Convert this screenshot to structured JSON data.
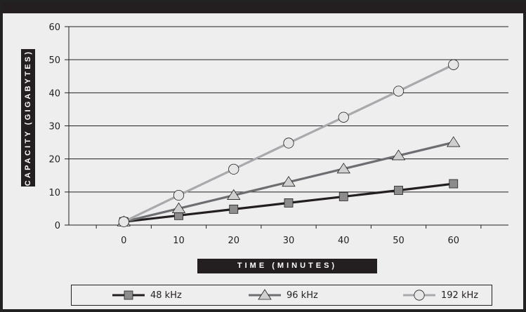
{
  "chart_data": {
    "type": "line",
    "title": "",
    "xlabel": "TIME (MINUTES)",
    "ylabel": "CAPACITY (GIGABYTES)",
    "x": [
      0,
      10,
      20,
      30,
      40,
      50,
      60
    ],
    "xlim": [
      -10,
      70
    ],
    "ylim": [
      0,
      60
    ],
    "yticks": [
      0,
      10,
      20,
      30,
      40,
      50,
      60
    ],
    "grid": true,
    "legend_position": "bottom",
    "series": [
      {
        "name": "48 kHz",
        "marker": "square",
        "color": "#231f20",
        "marker_fill": "#8c8c8c",
        "values": [
          1.0,
          2.9,
          4.8,
          6.7,
          8.6,
          10.5,
          12.5
        ]
      },
      {
        "name": "96 kHz",
        "marker": "triangle",
        "color": "#6d6e71",
        "marker_fill": "#cfcfcf",
        "values": [
          1.0,
          5.0,
          9.0,
          13.0,
          17.0,
          21.0,
          25.0
        ]
      },
      {
        "name": "192 kHz",
        "marker": "circle",
        "color": "#a7a9ac",
        "marker_fill": "#e6e6e6",
        "values": [
          1.0,
          9.0,
          16.9,
          24.8,
          32.6,
          40.5,
          48.5
        ]
      }
    ]
  }
}
